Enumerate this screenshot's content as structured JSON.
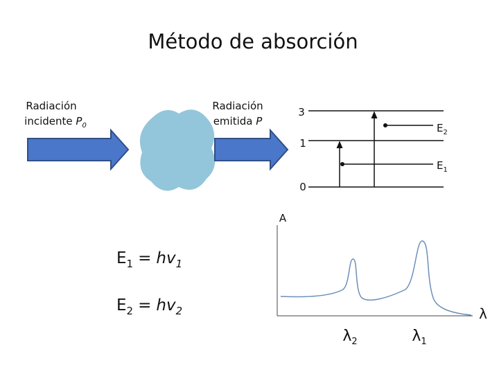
{
  "title": "Método de absorción",
  "incident": {
    "line1": "Radiación",
    "line2": "incidente",
    "symbol": "P",
    "subscript": "0"
  },
  "emitted": {
    "line1": "Radiación",
    "line2": "emitida",
    "symbol": "P"
  },
  "levels": [
    {
      "label": "3"
    },
    {
      "label": "1"
    },
    {
      "label": "0"
    }
  ],
  "transitions": [
    {
      "label": "E",
      "subscript": "2"
    },
    {
      "label": "E",
      "subscript": "1"
    }
  ],
  "spectrum": {
    "y_label": "A",
    "x_label": "λ",
    "peaks": [
      {
        "label": "λ",
        "subscript": "2"
      },
      {
        "label": "λ",
        "subscript": "1"
      }
    ]
  },
  "equations": [
    {
      "lhs": "E",
      "lhs_sub": "1",
      "op": "=",
      "rhs": "hv",
      "rhs_sub": "1"
    },
    {
      "lhs": "E",
      "lhs_sub": "2",
      "op": "=",
      "rhs": "hv",
      "rhs_sub": "2"
    }
  ]
}
